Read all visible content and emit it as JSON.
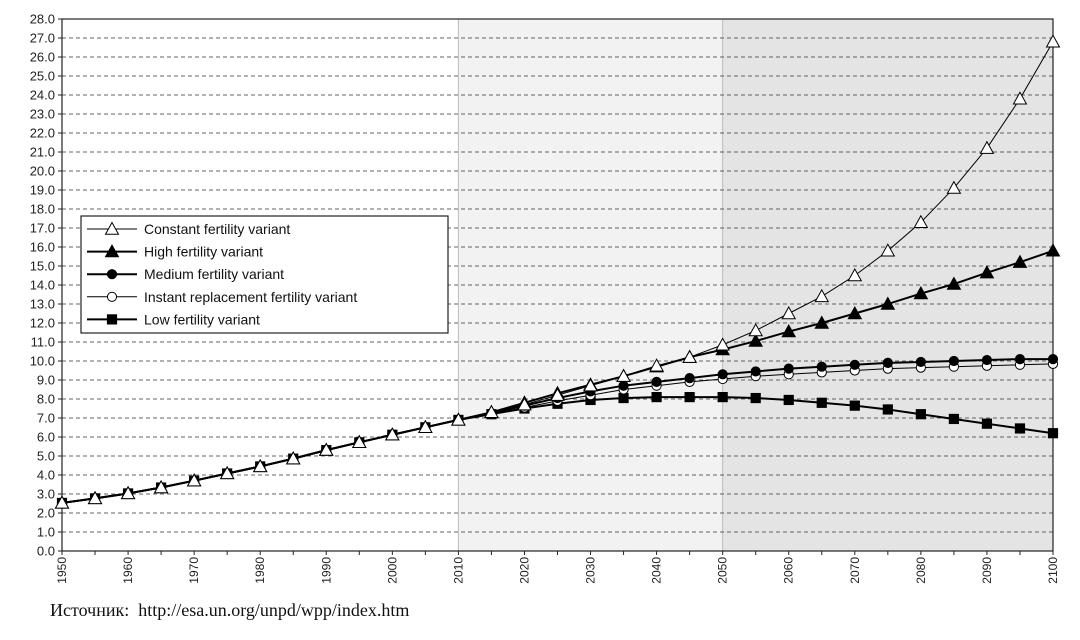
{
  "chart_data": {
    "type": "line",
    "x": [
      1950,
      1955,
      1960,
      1965,
      1970,
      1975,
      1980,
      1985,
      1990,
      1995,
      2000,
      2005,
      2010,
      2015,
      2020,
      2025,
      2030,
      2035,
      2040,
      2045,
      2050,
      2055,
      2060,
      2065,
      2070,
      2075,
      2080,
      2085,
      2090,
      2095,
      2100
    ],
    "ylim": [
      0,
      28
    ],
    "xlim": [
      1950,
      2100
    ],
    "y_ticks": [
      "0.0",
      "1.0",
      "2.0",
      "3.0",
      "4.0",
      "5.0",
      "6.0",
      "7.0",
      "8.0",
      "9.0",
      "10.0",
      "11.0",
      "12.0",
      "13.0",
      "14.0",
      "15.0",
      "16.0",
      "17.0",
      "18.0",
      "19.0",
      "20.0",
      "21.0",
      "22.0",
      "23.0",
      "24.0",
      "25.0",
      "26.0",
      "27.0",
      "28.0"
    ],
    "x_ticks": [
      "1950",
      "1960",
      "1970",
      "1980",
      "1990",
      "2000",
      "2010",
      "2020",
      "2030",
      "2040",
      "2050",
      "2060",
      "2070",
      "2080",
      "2090",
      "2100"
    ],
    "grid": "horizontal dashed",
    "shaded_regions": [
      {
        "from": 2010,
        "to": 2050,
        "color": "#f2f2f2"
      },
      {
        "from": 2050,
        "to": 2100,
        "color": "#e4e4e4"
      }
    ],
    "legend_position": "left",
    "series": [
      {
        "name": "Constant fertility variant",
        "marker": "open-triangle",
        "values": [
          2.53,
          2.77,
          3.03,
          3.34,
          3.7,
          4.08,
          4.45,
          4.86,
          5.31,
          5.72,
          6.12,
          6.51,
          6.9,
          7.3,
          7.7,
          8.2,
          8.7,
          9.2,
          9.75,
          10.2,
          10.85,
          11.6,
          12.5,
          13.4,
          14.5,
          15.8,
          17.3,
          19.1,
          21.2,
          23.8,
          26.8
        ]
      },
      {
        "name": "High fertility variant",
        "marker": "filled-triangle",
        "values": [
          2.53,
          2.77,
          3.03,
          3.34,
          3.7,
          4.08,
          4.45,
          4.86,
          5.31,
          5.72,
          6.12,
          6.51,
          6.9,
          7.3,
          7.8,
          8.3,
          8.75,
          9.2,
          9.7,
          10.2,
          10.6,
          11.05,
          11.55,
          12.0,
          12.5,
          13.0,
          13.55,
          14.05,
          14.65,
          15.2,
          15.8
        ]
      },
      {
        "name": "Medium fertility variant",
        "marker": "filled-circle",
        "values": [
          2.53,
          2.77,
          3.03,
          3.34,
          3.7,
          4.08,
          4.45,
          4.86,
          5.31,
          5.72,
          6.12,
          6.51,
          6.9,
          7.25,
          7.65,
          8.05,
          8.4,
          8.7,
          8.9,
          9.1,
          9.3,
          9.45,
          9.6,
          9.7,
          9.8,
          9.9,
          9.95,
          10.0,
          10.05,
          10.1,
          10.1
        ]
      },
      {
        "name": "Instant replacement fertility variant",
        "marker": "open-circle",
        "values": [
          2.53,
          2.77,
          3.03,
          3.34,
          3.7,
          4.08,
          4.45,
          4.86,
          5.31,
          5.72,
          6.12,
          6.51,
          6.9,
          7.2,
          7.55,
          7.9,
          8.2,
          8.5,
          8.7,
          8.9,
          9.05,
          9.2,
          9.3,
          9.4,
          9.5,
          9.6,
          9.65,
          9.7,
          9.75,
          9.8,
          9.85
        ]
      },
      {
        "name": "Low fertility variant",
        "marker": "filled-square",
        "values": [
          2.53,
          2.77,
          3.03,
          3.34,
          3.7,
          4.08,
          4.45,
          4.86,
          5.31,
          5.72,
          6.12,
          6.51,
          6.9,
          7.2,
          7.5,
          7.75,
          7.95,
          8.05,
          8.1,
          8.1,
          8.1,
          8.05,
          7.95,
          7.8,
          7.65,
          7.45,
          7.2,
          6.95,
          6.7,
          6.45,
          6.2
        ]
      }
    ]
  },
  "footer": {
    "source_label": "Источник:",
    "source_url": "http://esa.un.org/unpd/wpp/index.htm"
  }
}
